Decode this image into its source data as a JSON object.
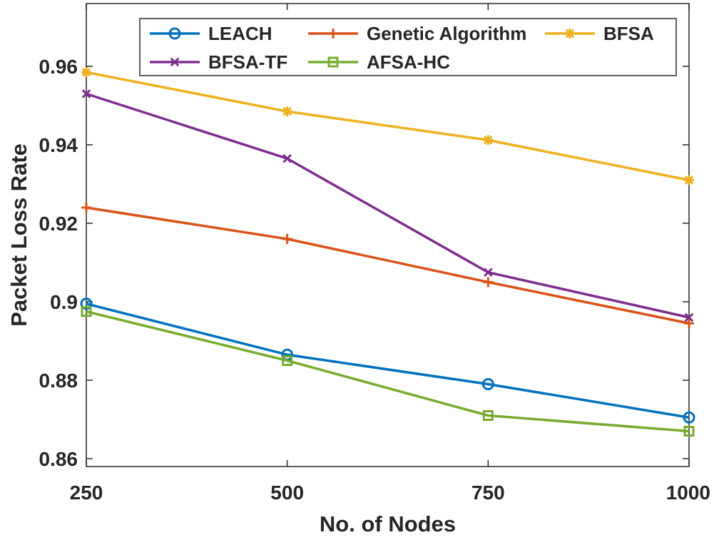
{
  "chart_data": {
    "type": "line",
    "title": "",
    "xlabel": "No. of Nodes",
    "ylabel": "Packet Loss Rate",
    "x": [
      250,
      500,
      750,
      1000
    ],
    "x_tick_labels": [
      "250",
      "500",
      "750",
      "1000"
    ],
    "xlim": [
      250,
      1000
    ],
    "ylim": [
      0.858,
      0.976
    ],
    "y_ticks": [
      0.86,
      0.88,
      0.9,
      0.92,
      0.94,
      0.96
    ],
    "y_tick_labels": [
      "0.86",
      "0.88",
      "0.9",
      "0.92",
      "0.94",
      "0.96"
    ],
    "grid": false,
    "legend_position": "top-right",
    "series": [
      {
        "name": "LEACH",
        "color": "#0072BD",
        "marker": "circle",
        "values": [
          0.8995,
          0.8865,
          0.879,
          0.8705
        ]
      },
      {
        "name": "Genetic Algorithm",
        "color": "#D95319",
        "marker": "plus",
        "values": [
          0.924,
          0.916,
          0.905,
          0.8945
        ]
      },
      {
        "name": "BFSA",
        "color": "#EDB120",
        "marker": "asterisk",
        "values": [
          0.9585,
          0.9485,
          0.9412,
          0.931
        ]
      },
      {
        "name": "BFSA-TF",
        "color": "#7E2F8E",
        "marker": "x",
        "values": [
          0.953,
          0.9365,
          0.9075,
          0.896
        ]
      },
      {
        "name": "AFSA-HC",
        "color": "#77AC30",
        "marker": "square",
        "values": [
          0.8975,
          0.885,
          0.871,
          0.867
        ]
      }
    ]
  }
}
